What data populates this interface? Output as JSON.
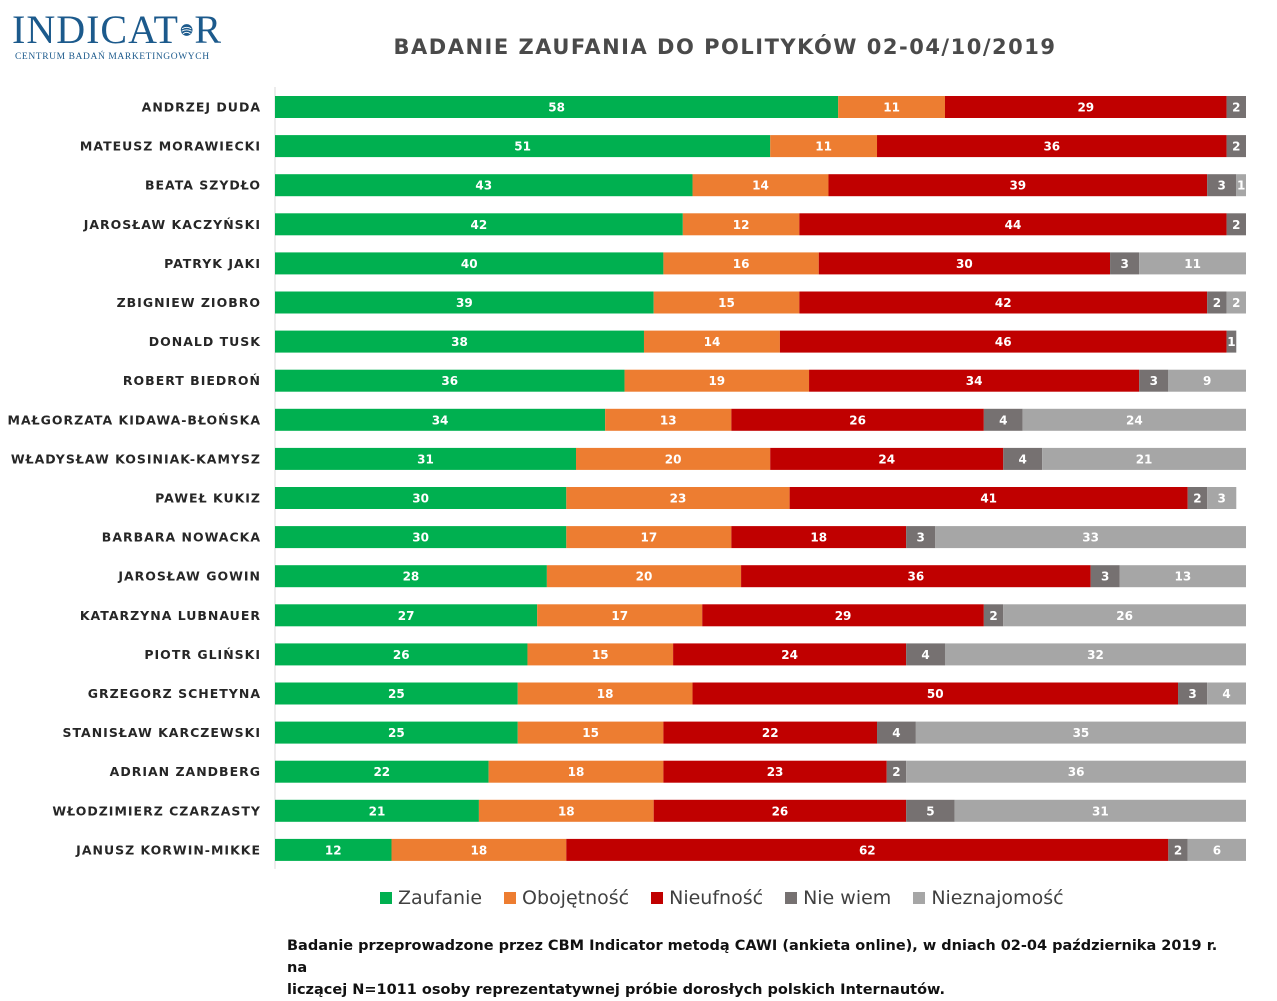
{
  "logo": {
    "word_left": "INDICAT",
    "word_right": "R",
    "subtitle": "CENTRUM BADAŃ MARKETINGOWYCH"
  },
  "footnote": {
    "line1": "Badanie przeprowadzone przez CBM Indicator metodą CAWI (ankieta online), w dniach 02-04 października 2019 r. na",
    "line2": "liczącej N=1011 osoby reprezentatywnej próbie dorosłych polskich Internautów."
  },
  "chart_data": {
    "type": "bar",
    "orientation": "horizontal",
    "stacked": true,
    "title": "BADANIE ZAUFANIA DO POLITYKÓW 02-04/10/2019",
    "xlabel": "",
    "ylabel": "",
    "xlim": [
      0,
      100
    ],
    "grid": false,
    "legend_position": "bottom",
    "categories": [
      "ANDRZEJ DUDA",
      "MATEUSZ MORAWIECKI",
      "BEATA SZYDŁO",
      "JAROSŁAW KACZYŃSKI",
      "PATRYK JAKI",
      "ZBIGNIEW ZIOBRO",
      "DONALD TUSK",
      "ROBERT BIEDROŃ",
      "MAŁGORZATA KIDAWA-BŁOŃSKA",
      "WŁADYSŁAW KOSINIAK-KAMYSZ",
      "PAWEŁ KUKIZ",
      "BARBARA NOWACKA",
      "JAROSŁAW GOWIN",
      "KATARZYNA LUBNAUER",
      "PIOTR GLIŃSKI",
      "GRZEGORZ SCHETYNA",
      "STANISŁAW KARCZEWSKI",
      "ADRIAN ZANDBERG",
      "WŁODZIMIERZ CZARZASTY",
      "JANUSZ KORWIN-MIKKE"
    ],
    "series": [
      {
        "name": "Zaufanie",
        "color": "#00b050",
        "values": [
          58,
          51,
          43,
          42,
          40,
          39,
          38,
          36,
          34,
          31,
          30,
          30,
          28,
          27,
          26,
          25,
          25,
          22,
          21,
          12
        ]
      },
      {
        "name": "Obojętność",
        "color": "#ed7d31",
        "values": [
          11,
          11,
          14,
          12,
          16,
          15,
          14,
          19,
          13,
          20,
          23,
          17,
          20,
          17,
          15,
          18,
          15,
          18,
          18,
          18
        ]
      },
      {
        "name": "Nieufność",
        "color": "#c00000",
        "values": [
          29,
          36,
          39,
          44,
          30,
          42,
          46,
          34,
          26,
          24,
          41,
          18,
          36,
          29,
          24,
          50,
          22,
          23,
          26,
          62
        ]
      },
      {
        "name": "Nie wiem",
        "color": "#767171",
        "values": [
          2,
          2,
          3,
          2,
          3,
          2,
          1,
          3,
          4,
          4,
          2,
          3,
          3,
          2,
          4,
          3,
          4,
          2,
          5,
          2
        ]
      },
      {
        "name": "Nieznajomość",
        "color": "#a6a6a6",
        "values": [
          0,
          0,
          1,
          0,
          11,
          2,
          0,
          9,
          24,
          21,
          3,
          33,
          13,
          26,
          32,
          4,
          35,
          36,
          31,
          6
        ]
      }
    ]
  }
}
